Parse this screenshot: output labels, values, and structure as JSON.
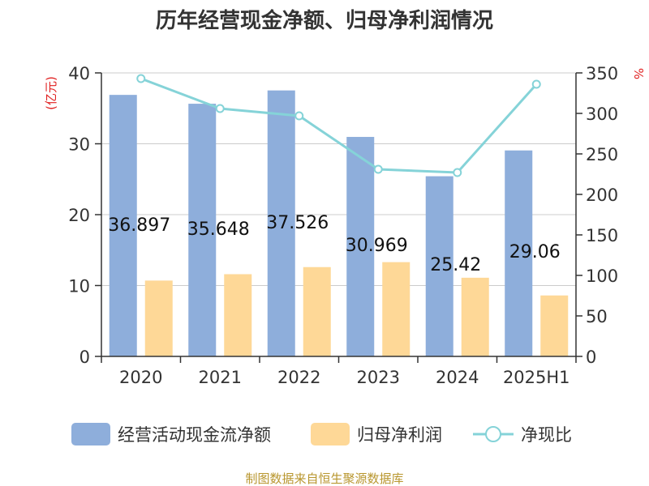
{
  "chart_data": {
    "type": "bar",
    "title": "历年经营现金净额、归母净利润情况",
    "categories": [
      "2020",
      "2021",
      "2022",
      "2023",
      "2024",
      "2025H1"
    ],
    "series": [
      {
        "name": "经营活动现金流净额",
        "type": "bar",
        "axis": "left",
        "color": "#8eaedb",
        "values": [
          36.897,
          35.648,
          37.526,
          30.969,
          25.42,
          29.06
        ],
        "labels": [
          "36.897",
          "35.648",
          "37.526",
          "30.969",
          "25.42",
          "29.06"
        ]
      },
      {
        "name": "归母净利润",
        "type": "bar",
        "axis": "left",
        "color": "#fed897",
        "values": [
          10.7,
          11.6,
          12.6,
          13.3,
          11.1,
          8.6
        ]
      },
      {
        "name": "净现比",
        "type": "line",
        "axis": "right",
        "color": "#85d3d8",
        "values": [
          343,
          306,
          297,
          231,
          227,
          336
        ]
      }
    ],
    "y_left": {
      "unit": "(亿元)",
      "ylim": [
        0,
        40
      ],
      "ticks": [
        "0",
        "10",
        "20",
        "30",
        "40"
      ]
    },
    "y_right": {
      "unit": "%",
      "ylim": [
        0,
        350
      ],
      "ticks": [
        "0",
        "50",
        "100",
        "150",
        "200",
        "250",
        "300",
        "350"
      ]
    },
    "grid": true,
    "legend_position": "bottom",
    "source": "制图数据来自恒生聚源数据库"
  }
}
